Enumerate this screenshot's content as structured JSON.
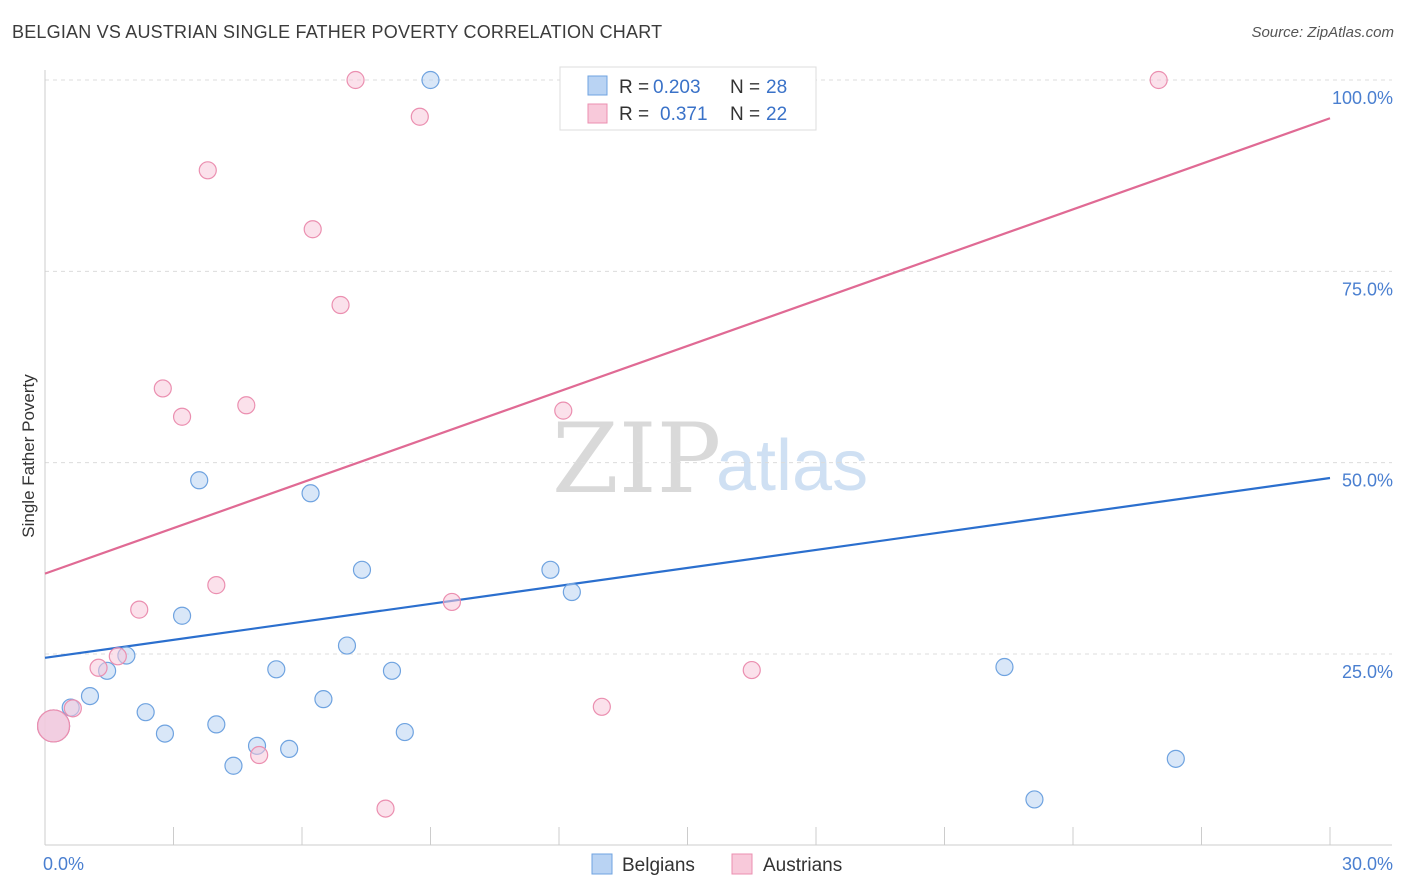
{
  "header": {
    "title": "BELGIAN VS AUSTRIAN SINGLE FATHER POVERTY CORRELATION CHART",
    "source": "Source: ZipAtlas.com"
  },
  "watermark": {
    "zip": "ZIP",
    "atlas": "atlas"
  },
  "legend": {
    "rows": [
      {
        "r_label": "R = ",
        "r_value": "0.203",
        "n_label": "N = ",
        "n_value": "28"
      },
      {
        "r_label": "R = ",
        "r_value": "0.371",
        "n_label": "N = ",
        "n_value": "22"
      }
    ]
  },
  "chart_data": {
    "type": "scatter",
    "title": "BELGIAN VS AUSTRIAN SINGLE FATHER POVERTY CORRELATION CHART",
    "xlabel": "",
    "ylabel": "Single Father Poverty",
    "xlim": [
      0,
      30
    ],
    "ylim": [
      0,
      105
    ],
    "x_tick_labels": [
      "0.0%",
      "30.0%"
    ],
    "y_ticks": [
      25,
      50,
      75,
      100
    ],
    "y_tick_labels": [
      "25.0%",
      "50.0%",
      "75.0%",
      "100.0%"
    ],
    "grid": true,
    "legend_position": "top-center",
    "series": [
      {
        "name": "Belgians",
        "color": "#6fa3e0",
        "fill": "#b9d3f3",
        "trend": {
          "x": [
            0,
            30
          ],
          "y": [
            24.5,
            48
          ]
        },
        "trend_color": "#2b6fce",
        "points": [
          [
            0.2,
            15.6
          ],
          [
            0.6,
            18.0
          ],
          [
            1.05,
            19.5
          ],
          [
            1.45,
            22.8
          ],
          [
            1.9,
            24.8
          ],
          [
            2.35,
            17.4
          ],
          [
            2.8,
            14.6
          ],
          [
            3.2,
            30.0
          ],
          [
            3.6,
            47.7
          ],
          [
            4.0,
            15.8
          ],
          [
            4.4,
            10.4
          ],
          [
            4.95,
            13.0
          ],
          [
            5.4,
            23.0
          ],
          [
            5.7,
            12.6
          ],
          [
            6.2,
            46.0
          ],
          [
            6.5,
            19.1
          ],
          [
            7.05,
            26.1
          ],
          [
            7.4,
            36.0
          ],
          [
            8.1,
            22.8
          ],
          [
            8.4,
            14.8
          ],
          [
            9.0,
            100.0
          ],
          [
            11.8,
            36.0
          ],
          [
            12.3,
            33.1
          ],
          [
            14.8,
            100.0
          ],
          [
            16.0,
            100.0
          ],
          [
            22.4,
            23.3
          ],
          [
            23.1,
            6.0
          ],
          [
            26.4,
            11.3
          ]
        ]
      },
      {
        "name": "Austrians",
        "color": "#eb8fb0",
        "fill": "#f8c9da",
        "trend": {
          "x": [
            0,
            30
          ],
          "y": [
            35.5,
            95
          ]
        },
        "trend_color": "#e06a94",
        "points": [
          [
            0.2,
            15.6
          ],
          [
            0.65,
            17.9
          ],
          [
            1.25,
            23.2
          ],
          [
            1.7,
            24.7
          ],
          [
            2.2,
            30.8
          ],
          [
            2.75,
            59.7
          ],
          [
            3.2,
            56.0
          ],
          [
            3.8,
            88.2
          ],
          [
            4.0,
            34.0
          ],
          [
            4.7,
            57.5
          ],
          [
            5.0,
            11.8
          ],
          [
            6.25,
            80.5
          ],
          [
            6.9,
            70.6
          ],
          [
            7.25,
            100.0
          ],
          [
            7.95,
            4.8
          ],
          [
            8.75,
            95.2
          ],
          [
            9.5,
            31.8
          ],
          [
            12.1,
            56.8
          ],
          [
            13.0,
            18.1
          ],
          [
            16.5,
            22.9
          ],
          [
            26.0,
            100.0
          ],
          [
            0.2,
            15.6
          ]
        ]
      }
    ]
  }
}
